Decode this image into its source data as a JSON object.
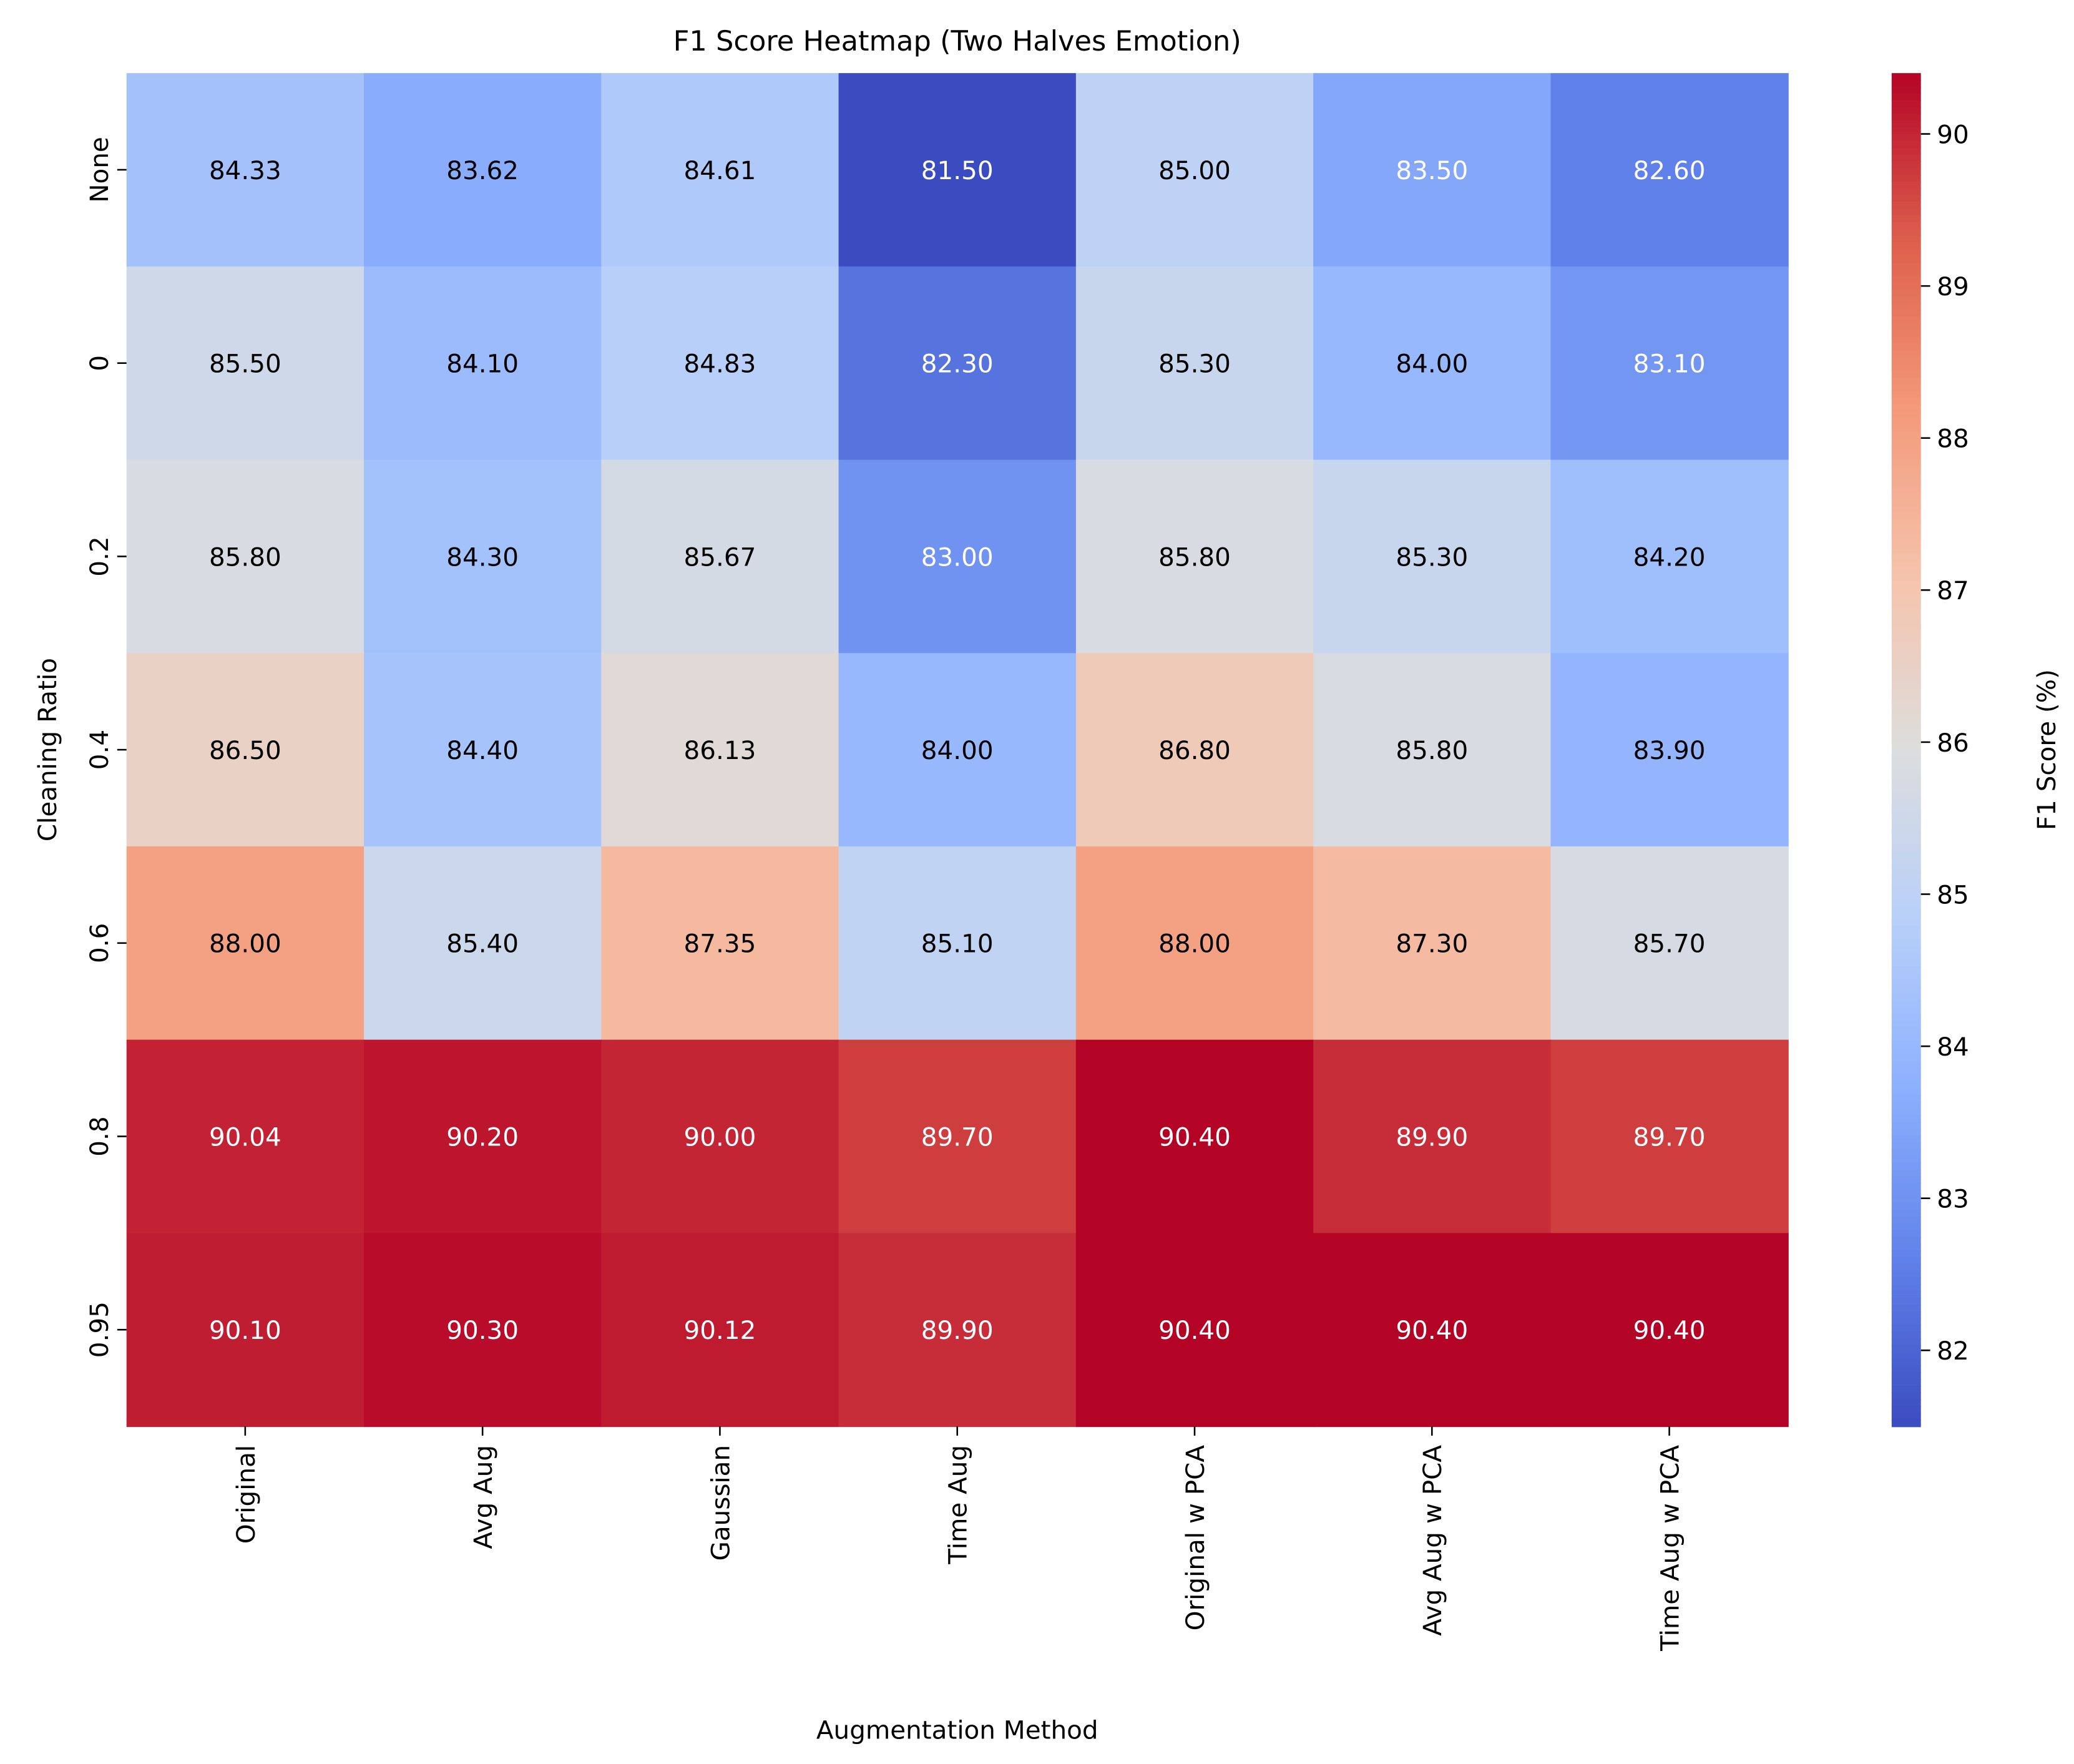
{
  "chart_data": {
    "type": "heatmap",
    "title": "F1 Score Heatmap (Two Halves Emotion)",
    "xlabel": "Augmentation Method",
    "ylabel": "Cleaning Ratio",
    "x_categories": [
      "Original",
      "Avg Aug",
      "Gaussian",
      "Time Aug",
      "Original w PCA",
      "Avg Aug w PCA",
      "Time Aug w PCA"
    ],
    "y_categories": [
      "None",
      "0",
      "0.2",
      "0.4",
      "0.6",
      "0.8",
      "0.95"
    ],
    "values": [
      [
        84.33,
        83.62,
        84.61,
        81.5,
        85.0,
        83.5,
        82.6
      ],
      [
        85.5,
        84.1,
        84.83,
        82.3,
        85.3,
        84.0,
        83.1
      ],
      [
        85.8,
        84.3,
        85.67,
        83.0,
        85.8,
        85.3,
        84.2
      ],
      [
        86.5,
        84.4,
        86.13,
        84.0,
        86.8,
        85.8,
        83.9
      ],
      [
        88.0,
        85.4,
        87.35,
        85.1,
        88.0,
        87.3,
        85.7
      ],
      [
        90.04,
        90.2,
        90.0,
        89.7,
        90.4,
        89.9,
        89.7
      ],
      [
        90.1,
        90.3,
        90.12,
        89.9,
        90.4,
        90.4,
        90.4
      ]
    ],
    "value_format": "2 decimals",
    "colormap": "coolwarm",
    "vmin": 81.5,
    "vmax": 90.4,
    "colorbar": {
      "label": "F1 Score (%)",
      "ticks": [
        82,
        83,
        84,
        85,
        86,
        87,
        88,
        89,
        90
      ]
    }
  }
}
